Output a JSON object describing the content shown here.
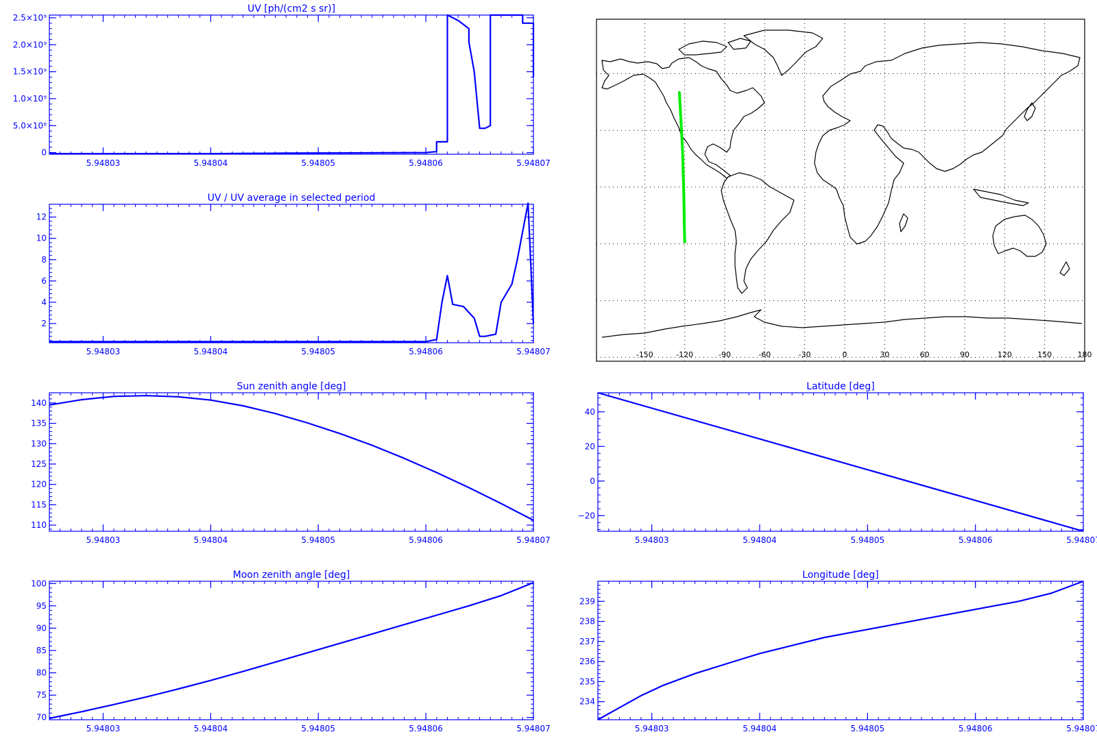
{
  "colors": {
    "axis": "#0000ff",
    "line": "#0000ff",
    "track": "#00ee00",
    "map": "#000000",
    "grid": "#000000"
  },
  "x_tick_labels": [
    "5.94803",
    "5.94804",
    "5.94805",
    "5.94806",
    "5.94807"
  ],
  "map": {
    "lon_ticks": [
      "-150",
      "-120",
      "-90",
      "-60",
      "-30",
      "0",
      "30",
      "60",
      "90",
      "120",
      "150",
      "180"
    ],
    "track": [
      [
        -124.0,
        50.0
      ],
      [
        -123.2,
        40.0
      ],
      [
        -122.4,
        30.0
      ],
      [
        -121.7,
        20.0
      ],
      [
        -121.2,
        10.0
      ],
      [
        -120.8,
        0.0
      ],
      [
        -120.5,
        -10.0
      ],
      [
        -120.3,
        -20.0
      ],
      [
        -120.0,
        -29.0
      ]
    ]
  },
  "chart_data": [
    {
      "id": "uv",
      "type": "line",
      "title": "UV [ph/(cm2 s sr)]",
      "xlim": [
        5.948025,
        5.94807
      ],
      "ylim": [
        -30000000,
        2550000000
      ],
      "yticks": [
        {
          "value": 0,
          "label": "0"
        },
        {
          "value": 500000000,
          "label": "5.0×10⁸"
        },
        {
          "value": 1000000000,
          "label": "1.0×10⁹"
        },
        {
          "value": 1500000000,
          "label": "1.5×10⁹"
        },
        {
          "value": 2000000000,
          "label": "2.0×10⁹"
        },
        {
          "value": 2500000000,
          "label": "2.5×10⁹"
        }
      ],
      "x": [
        5.948025,
        5.94804,
        5.948047,
        5.94806,
        5.948061,
        5.948061,
        5.948062,
        5.948062,
        5.948062,
        5.9480625,
        5.948063,
        5.948064,
        5.948064,
        5.9480645,
        5.948065,
        5.9480655,
        5.948066,
        5.948066,
        5.9480665,
        5.948067,
        5.948069,
        5.948069,
        5.94807,
        5.94807
      ],
      "y": [
        -20000000,
        -20000000,
        -10000000,
        0,
        20000000,
        200000000,
        200000000,
        2550000000,
        2550000000,
        2500000000,
        2450000000,
        2300000000,
        2050000000,
        1500000000,
        450000000,
        450000000,
        500000000,
        2550000000,
        2550000000,
        2550000000,
        2550000000,
        2400000000,
        2400000000,
        1400000000
      ]
    },
    {
      "id": "uv_ratio",
      "type": "line",
      "title": "UV / UV average in selected period",
      "xlim": [
        5.948025,
        5.94807
      ],
      "ylim": [
        0.2,
        13.2
      ],
      "yticks": [
        {
          "value": 2,
          "label": "2"
        },
        {
          "value": 4,
          "label": "4"
        },
        {
          "value": 6,
          "label": "6"
        },
        {
          "value": 8,
          "label": "8"
        },
        {
          "value": 10,
          "label": "10"
        },
        {
          "value": 12,
          "label": "12"
        }
      ],
      "x": [
        5.948025,
        5.94806,
        5.948061,
        5.9480615,
        5.948062,
        5.9480625,
        5.9480635,
        5.9480645,
        5.948065,
        5.9480655,
        5.9480665,
        5.948067,
        5.948068,
        5.9480685,
        5.9480695,
        5.94807
      ],
      "y": [
        0.3,
        0.3,
        0.5,
        4.0,
        6.5,
        3.8,
        3.6,
        2.5,
        0.8,
        0.8,
        1.0,
        4.0,
        5.7,
        8.0,
        13.3,
        2.0
      ]
    },
    {
      "id": "sun_zenith",
      "type": "line",
      "title": "Sun zenith angle [deg]",
      "xlim": [
        5.948025,
        5.94807
      ],
      "ylim": [
        108.5,
        142.5
      ],
      "yticks": [
        {
          "value": 110,
          "label": "110"
        },
        {
          "value": 115,
          "label": "115"
        },
        {
          "value": 120,
          "label": "120"
        },
        {
          "value": 125,
          "label": "125"
        },
        {
          "value": 130,
          "label": "130"
        },
        {
          "value": 135,
          "label": "135"
        },
        {
          "value": 140,
          "label": "140"
        }
      ],
      "x": [
        5.948025,
        5.948028,
        5.948031,
        5.948034,
        5.948037,
        5.94804,
        5.948043,
        5.948046,
        5.948049,
        5.948052,
        5.948055,
        5.948058,
        5.948061,
        5.948064,
        5.948067,
        5.94807
      ],
      "y": [
        139.5,
        140.8,
        141.6,
        141.8,
        141.5,
        140.7,
        139.3,
        137.4,
        135.1,
        132.5,
        129.6,
        126.4,
        122.9,
        119.2,
        115.3,
        111.2
      ]
    },
    {
      "id": "moon_zenith",
      "type": "line",
      "title": "Moon zenith angle [deg]",
      "xlim": [
        5.948025,
        5.94807
      ],
      "ylim": [
        69.5,
        100.5
      ],
      "yticks": [
        {
          "value": 70,
          "label": "70"
        },
        {
          "value": 75,
          "label": "75"
        },
        {
          "value": 80,
          "label": "80"
        },
        {
          "value": 85,
          "label": "85"
        },
        {
          "value": 90,
          "label": "90"
        },
        {
          "value": 95,
          "label": "95"
        },
        {
          "value": 100,
          "label": "100"
        }
      ],
      "x": [
        5.948025,
        5.948028,
        5.948031,
        5.948034,
        5.948037,
        5.94804,
        5.948043,
        5.948046,
        5.948049,
        5.948052,
        5.948055,
        5.948058,
        5.948061,
        5.948064,
        5.948067,
        5.94807
      ],
      "y": [
        69.8,
        71.3,
        72.9,
        74.6,
        76.4,
        78.3,
        80.3,
        82.4,
        84.5,
        86.6,
        88.7,
        90.8,
        92.9,
        95.0,
        97.3,
        100.2
      ]
    },
    {
      "id": "latitude",
      "type": "line",
      "title": "Latitude [deg]",
      "xlim": [
        5.948025,
        5.94807
      ],
      "ylim": [
        -29,
        51
      ],
      "yticks": [
        {
          "value": -20,
          "label": "−20"
        },
        {
          "value": 0,
          "label": "0"
        },
        {
          "value": 20,
          "label": "20"
        },
        {
          "value": 40,
          "label": "40"
        }
      ],
      "x": [
        5.948025,
        5.94807
      ],
      "y": [
        51,
        -29
      ]
    },
    {
      "id": "longitude",
      "type": "line",
      "title": "Longitude [deg]",
      "xlim": [
        5.948025,
        5.94807
      ],
      "ylim": [
        233.1,
        240.0
      ],
      "yticks": [
        {
          "value": 234,
          "label": "234"
        },
        {
          "value": 235,
          "label": "235"
        },
        {
          "value": 236,
          "label": "236"
        },
        {
          "value": 237,
          "label": "237"
        },
        {
          "value": 238,
          "label": "238"
        },
        {
          "value": 239,
          "label": "239"
        }
      ],
      "x": [
        5.948025,
        5.948027,
        5.948029,
        5.948031,
        5.948034,
        5.948037,
        5.94804,
        5.948043,
        5.948046,
        5.948049,
        5.948052,
        5.948055,
        5.948058,
        5.948061,
        5.948064,
        5.948067,
        5.94807
      ],
      "y": [
        233.1,
        233.7,
        234.3,
        234.8,
        235.4,
        235.9,
        236.4,
        236.8,
        237.2,
        237.5,
        237.8,
        238.1,
        238.4,
        238.7,
        239.0,
        239.4,
        240.0
      ]
    }
  ]
}
